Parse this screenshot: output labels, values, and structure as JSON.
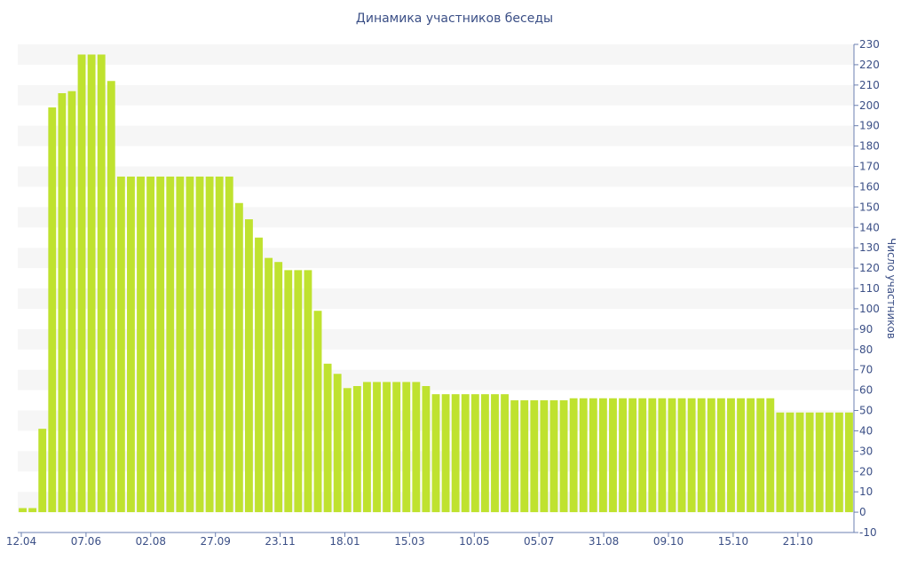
{
  "chart_data": {
    "type": "bar",
    "title": "Динамика участников беседы",
    "xlabel": "",
    "ylabel": "Число участников",
    "ylim": [
      -10,
      230
    ],
    "y_ticks": [
      -10,
      0,
      10,
      20,
      30,
      40,
      50,
      60,
      70,
      80,
      90,
      100,
      110,
      120,
      130,
      140,
      150,
      160,
      170,
      180,
      190,
      200,
      210,
      220,
      230
    ],
    "x_tick_labels": [
      "12.04",
      "07.06",
      "02.08",
      "27.09",
      "23.11",
      "18.01",
      "15.03",
      "10.05",
      "05.07",
      "31.08",
      "09.10",
      "15.10",
      "21.10"
    ],
    "bar_color": "#bfe22f",
    "band_color": "#f6f6f6",
    "text_color": "#3b4f86",
    "grid": "horizontal bands",
    "values": [
      2,
      2,
      41,
      199,
      206,
      207,
      225,
      225,
      225,
      212,
      165,
      165,
      165,
      165,
      165,
      165,
      165,
      165,
      165,
      165,
      165,
      165,
      152,
      144,
      135,
      125,
      123,
      119,
      119,
      119,
      99,
      73,
      68,
      61,
      62,
      64,
      64,
      64,
      64,
      64,
      64,
      62,
      58,
      58,
      58,
      58,
      58,
      58,
      58,
      58,
      55,
      55,
      55,
      55,
      55,
      55,
      56,
      56,
      56,
      56,
      56,
      56,
      56,
      56,
      56,
      56,
      56,
      56,
      56,
      56,
      56,
      56,
      56,
      56,
      56,
      56,
      56,
      49,
      49,
      49,
      49,
      49,
      49,
      49,
      49
    ]
  }
}
